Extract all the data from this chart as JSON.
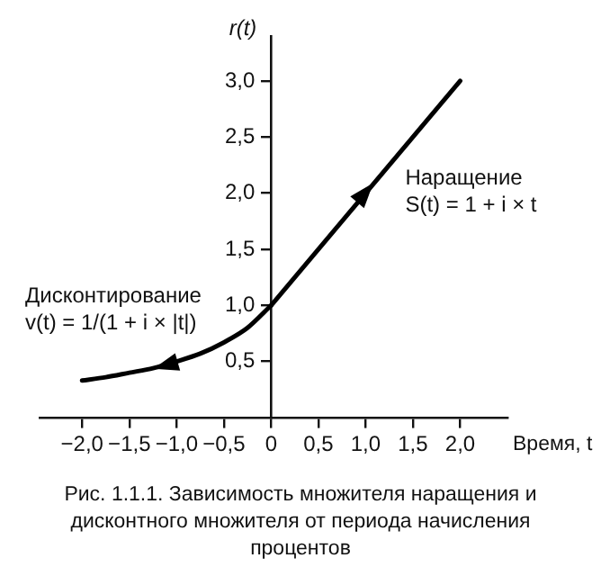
{
  "chart_data": {
    "type": "line",
    "title": "Рис. 1.1.1. Зависимость множителя наращения и дисконтного множителя от периода начисления процентов",
    "xlabel": "Время, t",
    "ylabel": "r(t)",
    "series": [
      {
        "name": "Наращение",
        "color": "#000000",
        "x": [
          0,
          2
        ],
        "values": [
          1,
          3
        ]
      },
      {
        "name": "Дисконтирование",
        "color": "#000000",
        "x": [
          0,
          -0.25,
          -0.5,
          -0.75,
          -1,
          -1.25,
          -1.5,
          -1.75,
          -2
        ],
        "values": [
          1,
          0.8,
          0.67,
          0.57,
          0.5,
          0.44,
          0.4,
          0.36,
          0.33
        ]
      }
    ],
    "annotations": [
      "S(t) = 1 + i × t",
      "v(t) = 1/(1 + i × |t|)"
    ],
    "xlim": [
      -2.45,
      2.5
    ],
    "ylim": [
      0,
      3.4
    ],
    "xticks": [
      {
        "value": -2,
        "label": "−2,0"
      },
      {
        "value": -1.5,
        "label": "−1,5"
      },
      {
        "value": -1,
        "label": "−1,0"
      },
      {
        "value": -0.5,
        "label": "−0,5"
      },
      0,
      {
        "value": 0.5,
        "label": "0,5"
      },
      {
        "value": 1,
        "label": "1,0"
      },
      {
        "value": 1.5,
        "label": "1,5"
      },
      {
        "value": 2,
        "label": "2,0"
      }
    ],
    "yticks": [
      {
        "value": 0.5,
        "label": "0,5"
      },
      {
        "value": 1,
        "label": "1,0"
      },
      {
        "value": 1.5,
        "label": "1,5"
      },
      {
        "value": 2,
        "label": "2,0"
      },
      {
        "value": 2.5,
        "label": "2,5"
      },
      {
        "value": 3,
        "label": "3,0"
      }
    ],
    "grid": false,
    "legend": false,
    "marker": "none",
    "line_style": "solid"
  }
}
